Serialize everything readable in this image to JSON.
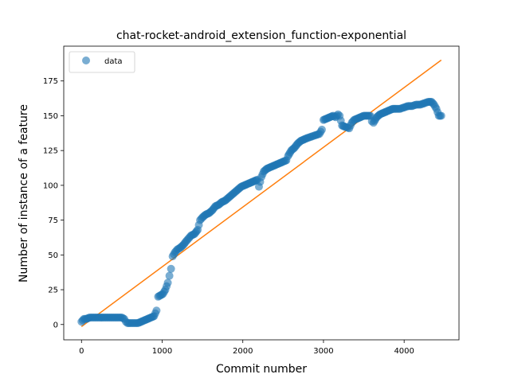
{
  "chart_data": {
    "type": "scatter",
    "title": "chat-rocket-android_extension_function-exponential",
    "xlabel": "Commit number",
    "ylabel": "Number of instance of a feature",
    "xlim": [
      -220,
      4680
    ],
    "ylim": [
      -11,
      200
    ],
    "xticks": [
      0,
      1000,
      2000,
      3000,
      4000
    ],
    "yticks": [
      0,
      25,
      50,
      75,
      100,
      125,
      150,
      175
    ],
    "grid": false,
    "legend": {
      "position": "top-left",
      "entries": [
        "data"
      ]
    },
    "colors": {
      "data": "#1f77b4",
      "fit": "#ff7f0e"
    },
    "series": [
      {
        "name": "data",
        "kind": "scatter",
        "points": [
          [
            0,
            2
          ],
          [
            30,
            4
          ],
          [
            60,
            4
          ],
          [
            100,
            5
          ],
          [
            150,
            5
          ],
          [
            200,
            5
          ],
          [
            250,
            5
          ],
          [
            300,
            5
          ],
          [
            350,
            5
          ],
          [
            400,
            5
          ],
          [
            450,
            5
          ],
          [
            500,
            5
          ],
          [
            530,
            4
          ],
          [
            550,
            2
          ],
          [
            570,
            1
          ],
          [
            600,
            1
          ],
          [
            650,
            1
          ],
          [
            700,
            1
          ],
          [
            740,
            2
          ],
          [
            780,
            3
          ],
          [
            820,
            4
          ],
          [
            860,
            5
          ],
          [
            900,
            6
          ],
          [
            930,
            10
          ],
          [
            950,
            20
          ],
          [
            980,
            21
          ],
          [
            1010,
            22
          ],
          [
            1040,
            25
          ],
          [
            1070,
            30
          ],
          [
            1090,
            35
          ],
          [
            1110,
            40
          ],
          [
            1130,
            49
          ],
          [
            1160,
            52
          ],
          [
            1190,
            54
          ],
          [
            1220,
            55
          ],
          [
            1260,
            57
          ],
          [
            1300,
            60
          ],
          [
            1330,
            62
          ],
          [
            1360,
            64
          ],
          [
            1400,
            65
          ],
          [
            1440,
            68
          ],
          [
            1470,
            75
          ],
          [
            1500,
            77
          ],
          [
            1540,
            79
          ],
          [
            1580,
            80
          ],
          [
            1620,
            82
          ],
          [
            1660,
            85
          ],
          [
            1700,
            86
          ],
          [
            1740,
            88
          ],
          [
            1780,
            89
          ],
          [
            1820,
            91
          ],
          [
            1860,
            93
          ],
          [
            1900,
            95
          ],
          [
            1940,
            97
          ],
          [
            1980,
            99
          ],
          [
            2020,
            100
          ],
          [
            2060,
            101
          ],
          [
            2100,
            102
          ],
          [
            2140,
            103
          ],
          [
            2180,
            104
          ],
          [
            2200,
            99
          ],
          [
            2230,
            106
          ],
          [
            2260,
            110
          ],
          [
            2300,
            112
          ],
          [
            2340,
            113
          ],
          [
            2380,
            114
          ],
          [
            2420,
            115
          ],
          [
            2460,
            116
          ],
          [
            2500,
            117
          ],
          [
            2540,
            118
          ],
          [
            2560,
            121
          ],
          [
            2600,
            125
          ],
          [
            2640,
            127
          ],
          [
            2680,
            130
          ],
          [
            2720,
            132
          ],
          [
            2760,
            133
          ],
          [
            2800,
            134
          ],
          [
            2850,
            135
          ],
          [
            2900,
            136
          ],
          [
            2950,
            137
          ],
          [
            2980,
            140
          ],
          [
            3000,
            147
          ],
          [
            3040,
            148
          ],
          [
            3080,
            149
          ],
          [
            3120,
            150
          ],
          [
            3150,
            149
          ],
          [
            3180,
            151
          ],
          [
            3200,
            150
          ],
          [
            3230,
            143
          ],
          [
            3270,
            142
          ],
          [
            3320,
            141
          ],
          [
            3350,
            145
          ],
          [
            3380,
            147
          ],
          [
            3420,
            148
          ],
          [
            3460,
            149
          ],
          [
            3500,
            150
          ],
          [
            3540,
            150
          ],
          [
            3580,
            150
          ],
          [
            3600,
            146
          ],
          [
            3620,
            145
          ],
          [
            3660,
            149
          ],
          [
            3700,
            151
          ],
          [
            3740,
            152
          ],
          [
            3780,
            153
          ],
          [
            3820,
            154
          ],
          [
            3860,
            155
          ],
          [
            3900,
            155
          ],
          [
            3950,
            155
          ],
          [
            4000,
            156
          ],
          [
            4050,
            157
          ],
          [
            4100,
            157
          ],
          [
            4150,
            158
          ],
          [
            4200,
            158
          ],
          [
            4250,
            159
          ],
          [
            4300,
            160
          ],
          [
            4340,
            160
          ],
          [
            4370,
            158
          ],
          [
            4400,
            155
          ],
          [
            4430,
            150
          ],
          [
            4460,
            150
          ]
        ]
      },
      {
        "name": "",
        "kind": "line",
        "points": [
          [
            0,
            -1.5
          ],
          [
            4460,
            190
          ]
        ]
      }
    ]
  }
}
